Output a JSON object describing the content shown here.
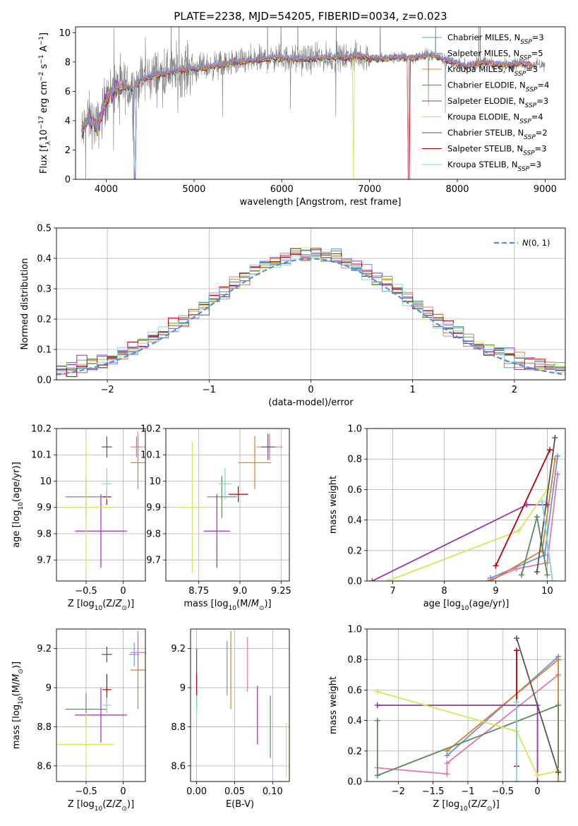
{
  "page_title": "PLATE=2238, MJD=54205, FIBERID=0034, z=0.023",
  "colors": {
    "cm": "#6495ed",
    "sm": "#e07aa8",
    "km": "#e07b2a",
    "ce": "#5a8a5a",
    "se": "#9b30b0",
    "ke": "#d4e65a",
    "cs": "#555555",
    "ss": "#b00000",
    "ks": "#7fd6d6",
    "data": "#7f7f7f",
    "normal": "#5b8ad8"
  },
  "chart_data": [
    {
      "id": "spectrum",
      "type": "line",
      "xlabel": "wavelength [Angstrom, rest frame]",
      "ylabel": "Flux [f_λ10^-17 erg cm^-2 s^-1 A^-1]",
      "xlim": [
        3650,
        9230
      ],
      "ylim": [
        0,
        10.4
      ],
      "xticks": [
        4000,
        5000,
        6000,
        7000,
        8000,
        9000
      ],
      "yticks": [
        0,
        2,
        4,
        6,
        8,
        10
      ],
      "legend": [
        {
          "label": "Chabrier MILES, N_SSP=3",
          "color": "cm"
        },
        {
          "label": "Salpeter MILES, N_SSP=5",
          "color": "sm"
        },
        {
          "label": "Kroupa MILES, N_SSP=3",
          "color": "km"
        },
        {
          "label": "Chabrier ELODIE, N_SSP=4",
          "color": "ce"
        },
        {
          "label": "Salpeter ELODIE, N_SSP=3",
          "color": "se"
        },
        {
          "label": "Kroupa ELODIE, N_SSP=4",
          "color": "ke"
        },
        {
          "label": "Chabrier STELIB, N_SSP=2",
          "color": "cs"
        },
        {
          "label": "Salpeter STELIB, N_SSP=3",
          "color": "ss"
        },
        {
          "label": "Kroupa STELIB, N_SSP=3",
          "color": "ks"
        }
      ],
      "continuum": [
        [
          3720,
          3.2
        ],
        [
          3800,
          4.2
        ],
        [
          3900,
          3.6
        ],
        [
          3950,
          4.5
        ],
        [
          4000,
          5.6
        ],
        [
          4100,
          6.2
        ],
        [
          4200,
          6.3
        ],
        [
          4300,
          6.2
        ],
        [
          4400,
          6.8
        ],
        [
          4500,
          7.0
        ],
        [
          4700,
          7.3
        ],
        [
          4900,
          7.5
        ],
        [
          5100,
          7.6
        ],
        [
          5300,
          7.8
        ],
        [
          5500,
          8.0
        ],
        [
          5700,
          8.1
        ],
        [
          5900,
          8.3
        ],
        [
          6100,
          8.2
        ],
        [
          6300,
          8.2
        ],
        [
          6500,
          8.3
        ],
        [
          6700,
          8.3
        ],
        [
          6900,
          8.4
        ],
        [
          7100,
          8.2
        ],
        [
          7300,
          8.3
        ],
        [
          7500,
          8.3
        ],
        [
          7700,
          8.5
        ],
        [
          7900,
          8.1
        ],
        [
          8100,
          7.7
        ],
        [
          8300,
          8.0
        ],
        [
          8500,
          7.8
        ],
        [
          8700,
          7.9
        ],
        [
          8900,
          7.8
        ],
        [
          9000,
          7.8
        ]
      ]
    },
    {
      "id": "residuals",
      "type": "step",
      "xlabel": "(data-model)/error",
      "ylabel": "Normed distribution",
      "xlim": [
        -2.5,
        2.5
      ],
      "ylim": [
        0,
        0.5
      ],
      "xticks": [
        -2,
        -1,
        0,
        1,
        2
      ],
      "yticks": [
        0.0,
        0.1,
        0.2,
        0.3,
        0.4,
        0.5
      ],
      "legend": "N(0,1)",
      "bin_width": 0.1
    },
    {
      "id": "age_Z",
      "type": "errorbar",
      "xlabel": "Z [log10(Z/Z⊙)]",
      "ylabel": "age [log10(age/yr)]",
      "xlim": [
        -0.9,
        0.3
      ],
      "ylim": [
        9.62,
        10.2
      ],
      "xticks": [
        -0.5,
        0.0
      ],
      "yticks": [
        9.7,
        9.8,
        9.9,
        10.0,
        10.1,
        10.2
      ],
      "points": [
        {
          "c": "cm",
          "x": 0.18,
          "y": 10.13,
          "xe": 0.05,
          "ye": 0.04
        },
        {
          "c": "sm",
          "x": 0.2,
          "y": 10.13,
          "xe": 0.1,
          "ye": 0.06
        },
        {
          "c": "km",
          "x": 0.2,
          "y": 10.07,
          "xe": 0.1,
          "ye": 0.1
        },
        {
          "c": "ce",
          "x": -0.5,
          "y": 9.94,
          "xe": 0.28,
          "ye": 0.08
        },
        {
          "c": "se",
          "x": -0.3,
          "y": 9.81,
          "xe": 0.35,
          "ye": 0.14
        },
        {
          "c": "ke",
          "x": -0.5,
          "y": 9.9,
          "xe": 0.38,
          "ye": 0.25
        },
        {
          "c": "cs",
          "x": -0.22,
          "y": 10.13,
          "xe": 0.07,
          "ye": 0.04
        },
        {
          "c": "ss",
          "x": -0.22,
          "y": 9.94,
          "xe": 0.06,
          "ye": 0.03
        },
        {
          "c": "ks",
          "x": -0.22,
          "y": 9.99,
          "xe": 0.06,
          "ye": 0.06
        }
      ]
    },
    {
      "id": "age_mass",
      "type": "errorbar",
      "xlabel": "mass [log10(M/M⊙)]",
      "ylabel": "",
      "xlim": [
        8.55,
        9.3
      ],
      "ylim": [
        9.62,
        10.2
      ],
      "xticks": [
        8.75,
        9.0,
        9.25
      ],
      "yticks": [
        9.7,
        9.8,
        9.9,
        10.0,
        10.1,
        10.2
      ],
      "points": [
        {
          "c": "cm",
          "x": 9.18,
          "y": 10.13,
          "xe": 0.05,
          "ye": 0.04
        },
        {
          "c": "sm",
          "x": 9.18,
          "y": 10.13,
          "xe": 0.08,
          "ye": 0.05
        },
        {
          "c": "km",
          "x": 9.09,
          "y": 10.07,
          "xe": 0.1,
          "ye": 0.1
        },
        {
          "c": "ce",
          "x": 8.89,
          "y": 9.94,
          "xe": 0.09,
          "ye": 0.08
        },
        {
          "c": "se",
          "x": 8.86,
          "y": 9.81,
          "xe": 0.08,
          "ye": 0.14
        },
        {
          "c": "ke",
          "x": 8.71,
          "y": 9.9,
          "xe": 0.09,
          "ye": 0.25
        },
        {
          "c": "cs",
          "x": 9.17,
          "y": 10.13,
          "xe": 0.04,
          "ye": 0.05
        },
        {
          "c": "ss",
          "x": 8.99,
          "y": 9.95,
          "xe": 0.06,
          "ye": 0.03
        },
        {
          "c": "ks",
          "x": 8.91,
          "y": 9.99,
          "xe": 0.04,
          "ye": 0.06
        }
      ]
    },
    {
      "id": "weight_age",
      "type": "line",
      "xlabel": "age [log10(age/yr)]",
      "ylabel": "mass weight",
      "xlim": [
        6.5,
        10.35
      ],
      "ylim": [
        0,
        1.0
      ],
      "xticks": [
        7,
        8,
        9,
        10
      ],
      "yticks": [
        0.0,
        0.2,
        0.4,
        0.6,
        0.8,
        1.0
      ],
      "series": [
        {
          "c": "cm",
          "pts": [
            [
              8.9,
              0.02
            ],
            [
              9.95,
              0.17
            ],
            [
              10.2,
              0.82
            ]
          ]
        },
        {
          "c": "sm",
          "pts": [
            [
              8.85,
              0.0
            ],
            [
              9.4,
              0.08
            ],
            [
              10.0,
              0.12
            ],
            [
              10.2,
              0.7
            ]
          ]
        },
        {
          "c": "km",
          "pts": [
            [
              8.9,
              0.0
            ],
            [
              9.9,
              0.2
            ],
            [
              10.15,
              0.8
            ]
          ]
        },
        {
          "c": "ce",
          "pts": [
            [
              9.5,
              0.04
            ],
            [
              9.8,
              0.42
            ],
            [
              10.0,
              0.04
            ]
          ]
        },
        {
          "c": "se",
          "pts": [
            [
              6.6,
              0.0
            ],
            [
              9.6,
              0.5
            ],
            [
              10.0,
              0.5
            ]
          ]
        },
        {
          "c": "ke",
          "pts": [
            [
              6.9,
              0.0
            ],
            [
              9.45,
              0.33
            ],
            [
              10.0,
              0.6
            ]
          ]
        },
        {
          "c": "cs",
          "pts": [
            [
              9.8,
              0.06
            ],
            [
              10.15,
              0.94
            ]
          ]
        },
        {
          "c": "ss",
          "pts": [
            [
              9.0,
              0.1
            ],
            [
              10.05,
              0.86
            ]
          ]
        },
        {
          "c": "ks",
          "pts": [
            [
              9.9,
              0.52
            ],
            [
              10.1,
              0.0
            ]
          ]
        }
      ]
    },
    {
      "id": "mass_Z",
      "type": "errorbar",
      "xlabel": "Z [log10(Z/Z⊙)]",
      "ylabel": "mass [log10(M/M⊙)]",
      "xlim": [
        -0.9,
        0.3
      ],
      "ylim": [
        8.52,
        9.3
      ],
      "xticks": [
        -0.5,
        0.0
      ],
      "yticks": [
        8.6,
        8.8,
        9.0,
        9.2
      ],
      "points": [
        {
          "c": "cm",
          "x": 0.15,
          "y": 9.17,
          "xe": 0.07,
          "ye": 0.06
        },
        {
          "c": "sm",
          "x": 0.2,
          "y": 9.18,
          "xe": 0.1,
          "ye": 0.08
        },
        {
          "c": "km",
          "x": 0.2,
          "y": 9.09,
          "xe": 0.1,
          "ye": 0.2
        },
        {
          "c": "ce",
          "x": -0.5,
          "y": 8.89,
          "xe": 0.28,
          "ye": 0.08
        },
        {
          "c": "se",
          "x": -0.3,
          "y": 8.86,
          "xe": 0.35,
          "ye": 0.14
        },
        {
          "c": "ke",
          "x": -0.5,
          "y": 8.71,
          "xe": 0.38,
          "ye": 0.16
        },
        {
          "c": "cs",
          "x": -0.22,
          "y": 9.17,
          "xe": 0.07,
          "ye": 0.04
        },
        {
          "c": "ss",
          "x": -0.22,
          "y": 8.99,
          "xe": 0.06,
          "ye": 0.08
        },
        {
          "c": "ks",
          "x": -0.22,
          "y": 8.91,
          "xe": 0.06,
          "ye": 0.04
        }
      ]
    },
    {
      "id": "mass_ebv",
      "type": "errorbar",
      "xlabel": "E(B-V)",
      "ylabel": "",
      "xlim": [
        -0.008,
        0.122
      ],
      "ylim": [
        8.52,
        9.3
      ],
      "xticks": [
        0.0,
        0.05,
        0.1
      ],
      "yticks": [
        8.6,
        8.8,
        9.0,
        9.2
      ],
      "points": [
        {
          "c": "cm",
          "x": 0.04,
          "y": 9.1,
          "xe": 0,
          "ye": 0.14
        },
        {
          "c": "sm",
          "x": 0.067,
          "y": 9.12,
          "xe": 0,
          "ye": 0.14
        },
        {
          "c": "km",
          "x": 0.045,
          "y": 9.09,
          "xe": 0,
          "ye": 0.2
        },
        {
          "c": "ce",
          "x": 0.097,
          "y": 8.8,
          "xe": 0,
          "ye": 0.16
        },
        {
          "c": "se",
          "x": 0.08,
          "y": 8.86,
          "xe": 0,
          "ye": 0.15
        },
        {
          "c": "ke",
          "x": 0.118,
          "y": 8.68,
          "xe": 0,
          "ye": 0.14
        },
        {
          "c": "cs",
          "x": 0.0,
          "y": 9.13,
          "xe": 0,
          "ye": 0.07
        },
        {
          "c": "ss",
          "x": 0.0,
          "y": 8.99,
          "xe": 0,
          "ye": 0.08
        },
        {
          "c": "ks",
          "x": 0.0,
          "y": 8.91,
          "xe": 0,
          "ye": 0.05
        }
      ]
    },
    {
      "id": "weight_Z",
      "type": "line",
      "xlabel": "Z [log10(Z/Z⊙)]",
      "ylabel": "mass weight",
      "xlim": [
        -2.45,
        0.4
      ],
      "ylim": [
        0,
        1.0
      ],
      "xticks": [
        -2.0,
        -1.5,
        -1.0,
        -0.5,
        0.0
      ],
      "yticks": [
        0.0,
        0.2,
        0.4,
        0.6,
        0.8,
        1.0
      ],
      "series": [
        {
          "c": "cm",
          "pts": [
            [
              -1.3,
              0.17
            ],
            [
              0.3,
              0.82
            ]
          ]
        },
        {
          "c": "sm",
          "pts": [
            [
              -2.3,
              0.09
            ],
            [
              -1.3,
              0.05
            ],
            [
              -1.3,
              0.12
            ],
            [
              0.3,
              0.7
            ]
          ]
        },
        {
          "c": "km",
          "pts": [
            [
              -1.3,
              0.2
            ],
            [
              0.3,
              0.8
            ],
            [
              0.3,
              0.0
            ]
          ]
        },
        {
          "c": "ce",
          "pts": [
            [
              -2.3,
              0.4
            ],
            [
              -2.3,
              0.04
            ],
            [
              0.3,
              0.5
            ],
            [
              0.3,
              0.06
            ]
          ]
        },
        {
          "c": "se",
          "pts": [
            [
              -2.3,
              0.5
            ],
            [
              0.0,
              0.5
            ],
            [
              0.0,
              0.0
            ]
          ]
        },
        {
          "c": "ke",
          "pts": [
            [
              -2.3,
              0.59
            ],
            [
              -0.3,
              0.33
            ],
            [
              0.0,
              0.04
            ],
            [
              0.3,
              0.07
            ]
          ]
        },
        {
          "c": "cs",
          "pts": [
            [
              -0.3,
              0.94
            ],
            [
              0.3,
              0.06
            ]
          ]
        },
        {
          "c": "ss",
          "pts": [
            [
              -0.3,
              0.86
            ],
            [
              -0.3,
              0.1
            ]
          ]
        },
        {
          "c": "ks",
          "pts": [
            [
              -0.3,
              0.52
            ],
            [
              -0.3,
              0.0
            ]
          ]
        }
      ]
    }
  ]
}
